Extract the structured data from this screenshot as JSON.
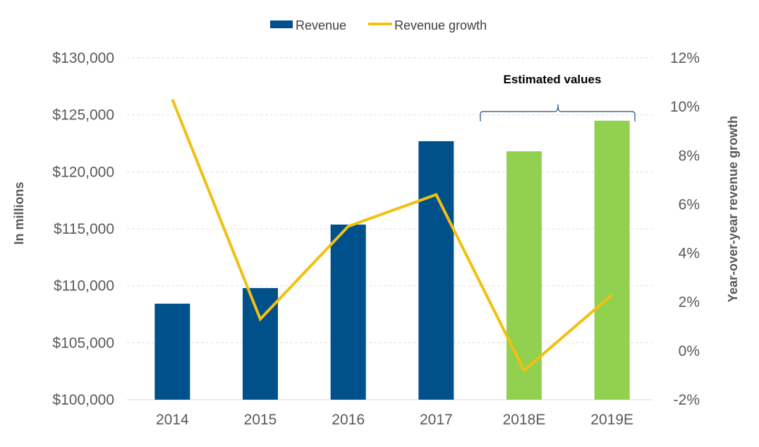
{
  "chart_data": {
    "type": "bar+line",
    "categories": [
      "2014",
      "2015",
      "2016",
      "2017",
      "2018E",
      "2019E"
    ],
    "series": [
      {
        "name": "Revenue",
        "type": "bar",
        "axis": "left",
        "values": [
          108430,
          109800,
          115370,
          122690,
          121800,
          124490
        ],
        "colors": [
          "#00508c",
          "#00508c",
          "#00508c",
          "#00508c",
          "#92d050",
          "#92d050"
        ]
      },
      {
        "name": "Revenue growth",
        "type": "line",
        "axis": "right",
        "values": [
          10.3,
          1.3,
          5.1,
          6.4,
          -0.8,
          2.3
        ],
        "color": "#f2c00f"
      }
    ],
    "ylabel": "In millions",
    "y2label": "Year-over-year revenue growth",
    "ylim": [
      100000,
      130000
    ],
    "y2lim": [
      -2,
      12
    ],
    "yticks": [
      "$100,000",
      "$105,000",
      "$110,000",
      "$115,000",
      "$120,000",
      "$125,000",
      "$130,000"
    ],
    "y2ticks": [
      "-2%",
      "0%",
      "2%",
      "4%",
      "6%",
      "8%",
      "10%",
      "12%"
    ],
    "annotation": "Estimated values",
    "legend_position": "top",
    "grid": true
  }
}
